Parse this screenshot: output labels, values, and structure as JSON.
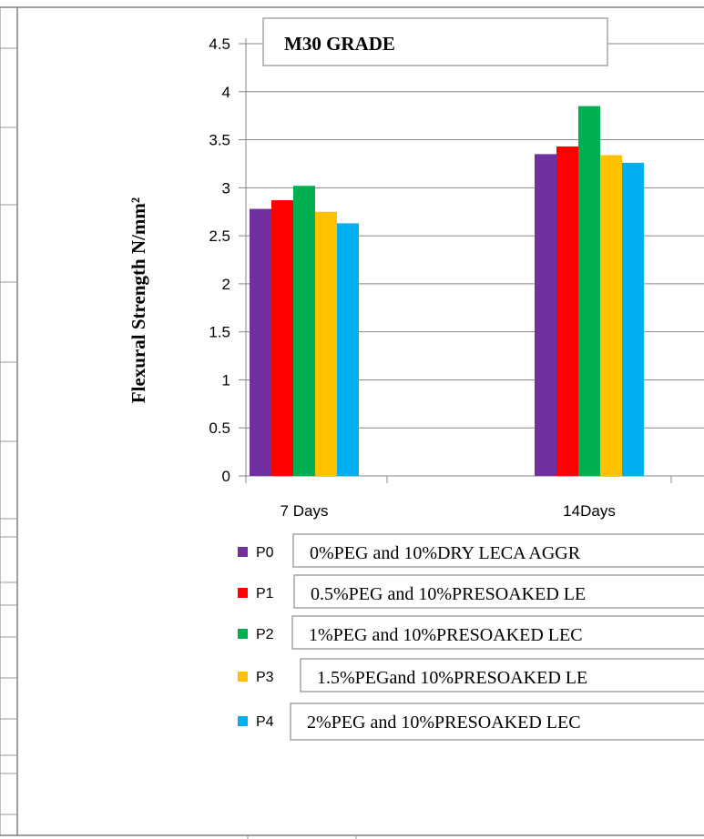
{
  "chart_data": {
    "type": "bar",
    "title": "M30 GRADE",
    "ylabel": "Flexural Strength N/mm²",
    "xlabel": "",
    "ylim": [
      0,
      4.5
    ],
    "yticks": [
      "0",
      "0.5",
      "1",
      "1.5",
      "2",
      "2.5",
      "3",
      "3.5",
      "4",
      "4.5"
    ],
    "categories": [
      "7 Days",
      "14Days"
    ],
    "series": [
      {
        "name": "P0",
        "color": "#7030a0",
        "values": [
          2.78,
          3.35
        ]
      },
      {
        "name": "P1",
        "color": "#ff0000",
        "values": [
          2.87,
          3.43
        ]
      },
      {
        "name": "P2",
        "color": "#00b050",
        "values": [
          3.02,
          3.85
        ]
      },
      {
        "name": "P3",
        "color": "#ffc000",
        "values": [
          2.75,
          3.34
        ]
      },
      {
        "name": "P4",
        "color": "#00b0f0",
        "values": [
          2.63,
          3.26
        ]
      }
    ],
    "grid": true,
    "legend": [
      {
        "key": "P0",
        "description": "0%PEG and 10%DRY LECA AGGR"
      },
      {
        "key": "P1",
        "description": "0.5%PEG and 10%PRESOAKED LE"
      },
      {
        "key": "P2",
        "description": "1%PEG and 10%PRESOAKED LEC"
      },
      {
        "key": "P3",
        "description": "1.5%PEGand 10%PRESOAKED LE"
      },
      {
        "key": "P4",
        "description": "2%PEG and 10%PRESOAKED LEC"
      }
    ],
    "legend_position": "bottom"
  }
}
